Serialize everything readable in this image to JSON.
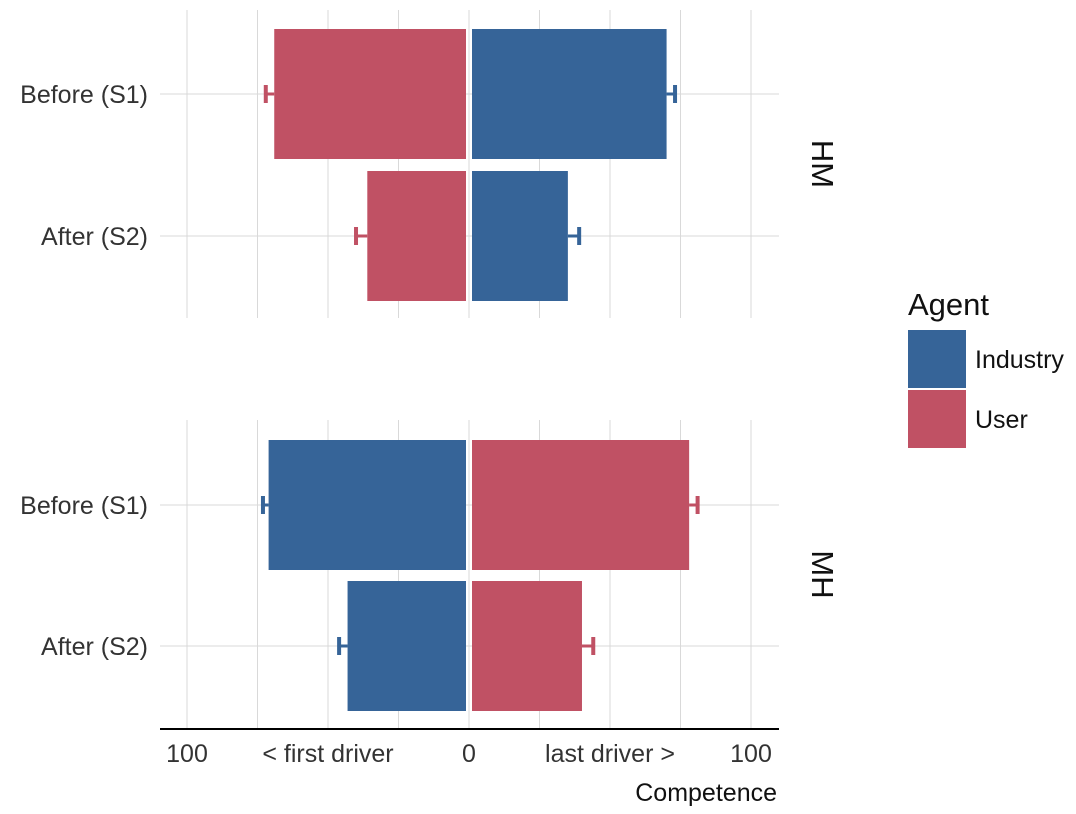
{
  "chart_data": {
    "type": "bar",
    "orientation": "horizontal",
    "style": "diverging",
    "xlabel": "Competence",
    "xlim": [
      -100,
      100
    ],
    "x_tick_labels": [
      "100",
      "< first driver",
      "0",
      "last driver >",
      "100"
    ],
    "x_tick_values": [
      -100,
      -50,
      0,
      50,
      100
    ],
    "grid": true,
    "legend_position": "right",
    "legend": {
      "title": "Agent",
      "items": [
        {
          "name": "Industry",
          "color": "#366498"
        },
        {
          "name": "User",
          "color": "#c05164"
        }
      ]
    },
    "categories": [
      "Before (S1)",
      "After (S2)"
    ],
    "facets": [
      {
        "label": "HM",
        "left_agent": "User",
        "right_agent": "Industry",
        "series": [
          {
            "name": "User",
            "side": "left",
            "values": [
              68,
              35
            ],
            "errors": [
              3,
              4
            ]
          },
          {
            "name": "Industry",
            "side": "right",
            "values": [
              69,
              34
            ],
            "errors": [
              3,
              4
            ]
          }
        ]
      },
      {
        "label": "MH",
        "left_agent": "Industry",
        "right_agent": "User",
        "series": [
          {
            "name": "Industry",
            "side": "left",
            "values": [
              70,
              42
            ],
            "errors": [
              2,
              3
            ]
          },
          {
            "name": "User",
            "side": "right",
            "values": [
              77,
              39
            ],
            "errors": [
              3,
              4
            ]
          }
        ]
      }
    ]
  }
}
